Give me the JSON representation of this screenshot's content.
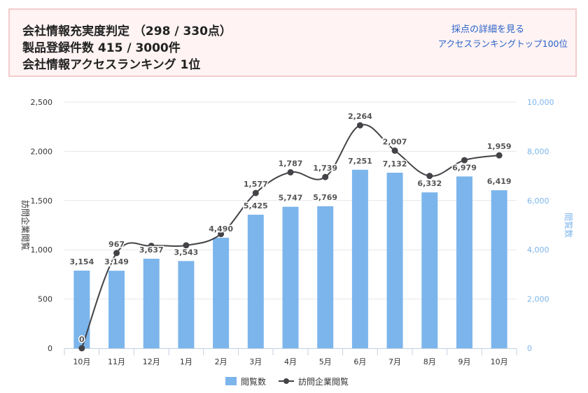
{
  "header": {
    "line1": "会社情報充実度判定 （298 / 330点）",
    "line2": "製品登録件数 415 / 3000件",
    "line3": "会社情報アクセスランキング 1位",
    "link_detail": "採点の詳細を見る",
    "link_ranking": "アクセスランキングトップ100位"
  },
  "colors": {
    "bar": "#7cb5ec",
    "line": "#434348",
    "right_axis": "#7cb5ec",
    "header_bg": "#fff3f3",
    "header_border": "#f4cccc",
    "link": "#2a62c9"
  },
  "chart_data": {
    "type": "bar",
    "categories": [
      "10月",
      "11月",
      "12月",
      "1月",
      "2月",
      "3月",
      "4月",
      "5月",
      "6月",
      "7月",
      "8月",
      "9月",
      "10月"
    ],
    "series": [
      {
        "name": "閲覧数",
        "type": "bar",
        "axis": "right",
        "values": [
          3154,
          3149,
          3637,
          3543,
          4490,
          5425,
          5747,
          5769,
          7251,
          7132,
          6332,
          6979,
          6419
        ],
        "labels": [
          "3,154",
          "3,149",
          "3,637",
          "3,543",
          "4,490",
          "5,425",
          "5,747",
          "5,769",
          "7,251",
          "7,132",
          "6,332",
          "6,979",
          "6,419"
        ]
      },
      {
        "name": "訪問企業閲覧",
        "type": "line",
        "axis": "left",
        "values": [
          0,
          967,
          1040,
          1045,
          1160,
          1577,
          1787,
          1739,
          2264,
          2007,
          1750,
          1910,
          1959
        ],
        "labels": [
          "0",
          "967",
          "",
          "",
          "",
          "1,577",
          "1,787",
          "1,739",
          "2,264",
          "2,007",
          "",
          "",
          "1,959"
        ]
      }
    ],
    "left_axis": {
      "label": "訪問企業閲覧",
      "ylim": [
        0,
        2500
      ],
      "ticks": [
        "0",
        "500",
        "1,000",
        "1,500",
        "2,000",
        "2,500"
      ]
    },
    "right_axis": {
      "label": "閲覧数",
      "ylim": [
        0,
        10000
      ],
      "ticks": [
        "0",
        "2,000",
        "4,000",
        "6,000",
        "8,000",
        "10,000"
      ]
    },
    "grid": true,
    "legend": "bottom-center"
  }
}
